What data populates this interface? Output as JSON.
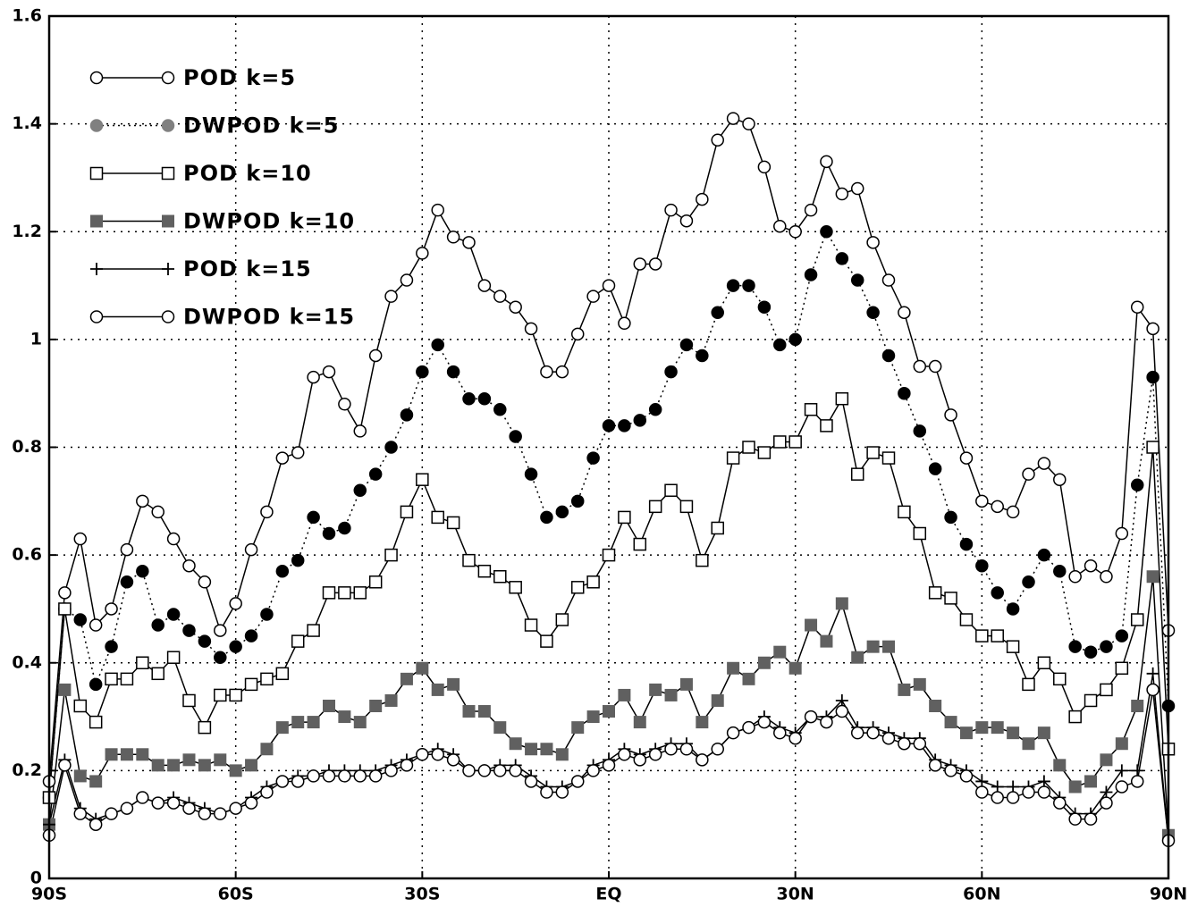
{
  "chart_data": {
    "type": "line",
    "x": [
      -90,
      -87.5,
      -85,
      -82.5,
      -80,
      -77.5,
      -75,
      -72.5,
      -70,
      -67.5,
      -65,
      -62.5,
      -60,
      -57.5,
      -55,
      -52.5,
      -50,
      -47.5,
      -45,
      -42.5,
      -40,
      -37.5,
      -35,
      -32.5,
      -30,
      -27.5,
      -25,
      -22.5,
      -20,
      -17.5,
      -15,
      -12.5,
      -10,
      -7.5,
      -5,
      -2.5,
      0,
      2.5,
      5,
      7.5,
      10,
      12.5,
      15,
      17.5,
      20,
      22.5,
      25,
      27.5,
      30,
      32.5,
      35,
      37.5,
      40,
      42.5,
      45,
      47.5,
      50,
      52.5,
      55,
      57.5,
      60,
      62.5,
      65,
      67.5,
      70,
      72.5,
      75,
      77.5,
      80,
      82.5,
      85,
      87.5,
      90
    ],
    "xlim": [
      -90,
      90
    ],
    "xticks": [
      {
        "value": -90,
        "label": "90S"
      },
      {
        "value": -60,
        "label": "60S"
      },
      {
        "value": -30,
        "label": "30S"
      },
      {
        "value": 0,
        "label": "EQ"
      },
      {
        "value": 30,
        "label": "30N"
      },
      {
        "value": 60,
        "label": "60N"
      },
      {
        "value": 90,
        "label": "90N"
      }
    ],
    "ylim": [
      0,
      1.6
    ],
    "yticks": [
      0,
      0.2,
      0.4,
      0.6,
      0.8,
      1,
      1.2,
      1.4,
      1.6
    ],
    "grid": true,
    "legend": "top-left",
    "series": [
      {
        "name": "POD k=5",
        "color": "#000000",
        "marker": "circle-open",
        "line": "solid",
        "values": [
          0.18,
          0.53,
          0.63,
          0.47,
          0.5,
          0.61,
          0.7,
          0.68,
          0.63,
          0.58,
          0.55,
          0.46,
          0.51,
          0.61,
          0.68,
          0.78,
          0.79,
          0.93,
          0.94,
          0.88,
          0.83,
          0.97,
          1.08,
          1.11,
          1.16,
          1.24,
          1.19,
          1.18,
          1.1,
          1.08,
          1.06,
          1.02,
          0.94,
          0.94,
          1.01,
          1.08,
          1.1,
          1.03,
          1.14,
          1.14,
          1.24,
          1.22,
          1.26,
          1.37,
          1.41,
          1.4,
          1.32,
          1.21,
          1.2,
          1.24,
          1.33,
          1.27,
          1.28,
          1.18,
          1.11,
          1.05,
          0.95,
          0.95,
          0.86,
          0.78,
          0.7,
          0.69,
          0.68,
          0.75,
          0.77,
          0.74,
          0.56,
          0.58,
          0.56,
          0.64,
          1.06,
          1.02,
          0.46
        ]
      },
      {
        "name": "DWPOD k=5",
        "color": "#000000",
        "marker": "circle-filled",
        "line": "dotted",
        "values": [
          0.15,
          0.5,
          0.48,
          0.36,
          0.43,
          0.55,
          0.57,
          0.47,
          0.49,
          0.46,
          0.44,
          0.41,
          0.43,
          0.45,
          0.49,
          0.57,
          0.59,
          0.67,
          0.64,
          0.65,
          0.72,
          0.75,
          0.8,
          0.86,
          0.94,
          0.99,
          0.94,
          0.89,
          0.89,
          0.87,
          0.82,
          0.75,
          0.67,
          0.68,
          0.7,
          0.78,
          0.84,
          0.84,
          0.85,
          0.87,
          0.94,
          0.99,
          0.97,
          1.05,
          1.1,
          1.1,
          1.06,
          0.99,
          1.0,
          1.12,
          1.2,
          1.15,
          1.11,
          1.05,
          0.97,
          0.9,
          0.83,
          0.76,
          0.67,
          0.62,
          0.58,
          0.53,
          0.5,
          0.55,
          0.6,
          0.57,
          0.43,
          0.42,
          0.43,
          0.45,
          0.73,
          0.93,
          0.32
        ]
      },
      {
        "name": "POD k=10",
        "color": "#000000",
        "marker": "square-open",
        "line": "solid",
        "values": [
          0.15,
          0.5,
          0.32,
          0.29,
          0.37,
          0.37,
          0.4,
          0.38,
          0.41,
          0.33,
          0.28,
          0.34,
          0.34,
          0.36,
          0.37,
          0.38,
          0.44,
          0.46,
          0.53,
          0.53,
          0.53,
          0.55,
          0.6,
          0.68,
          0.74,
          0.67,
          0.66,
          0.59,
          0.57,
          0.56,
          0.54,
          0.47,
          0.44,
          0.48,
          0.54,
          0.55,
          0.6,
          0.67,
          0.62,
          0.69,
          0.72,
          0.69,
          0.59,
          0.65,
          0.78,
          0.8,
          0.79,
          0.81,
          0.81,
          0.87,
          0.84,
          0.89,
          0.75,
          0.79,
          0.78,
          0.68,
          0.64,
          0.53,
          0.52,
          0.48,
          0.45,
          0.45,
          0.43,
          0.36,
          0.4,
          0.37,
          0.3,
          0.33,
          0.35,
          0.39,
          0.48,
          0.8,
          0.24
        ]
      },
      {
        "name": "DWPOD k=10",
        "color": "#606060",
        "marker": "square-filled",
        "line": "solid",
        "values": [
          0.1,
          0.35,
          0.19,
          0.18,
          0.23,
          0.23,
          0.23,
          0.21,
          0.21,
          0.22,
          0.21,
          0.22,
          0.2,
          0.21,
          0.24,
          0.28,
          0.29,
          0.29,
          0.32,
          0.3,
          0.29,
          0.32,
          0.33,
          0.37,
          0.39,
          0.35,
          0.36,
          0.31,
          0.31,
          0.28,
          0.25,
          0.24,
          0.24,
          0.23,
          0.28,
          0.3,
          0.31,
          0.34,
          0.29,
          0.35,
          0.34,
          0.36,
          0.29,
          0.33,
          0.39,
          0.37,
          0.4,
          0.42,
          0.39,
          0.47,
          0.44,
          0.51,
          0.41,
          0.43,
          0.43,
          0.35,
          0.36,
          0.32,
          0.29,
          0.27,
          0.28,
          0.28,
          0.27,
          0.25,
          0.27,
          0.21,
          0.17,
          0.18,
          0.22,
          0.25,
          0.32,
          0.56,
          0.08
        ]
      },
      {
        "name": "POD k=15",
        "color": "#000000",
        "marker": "plus",
        "line": "solid",
        "values": [
          0.1,
          0.22,
          0.13,
          0.11,
          0.12,
          0.13,
          0.15,
          0.14,
          0.15,
          0.14,
          0.13,
          0.12,
          0.13,
          0.15,
          0.17,
          0.18,
          0.19,
          0.19,
          0.2,
          0.2,
          0.2,
          0.2,
          0.21,
          0.22,
          0.23,
          0.24,
          0.23,
          0.2,
          0.2,
          0.21,
          0.21,
          0.19,
          0.17,
          0.17,
          0.18,
          0.21,
          0.22,
          0.24,
          0.23,
          0.24,
          0.25,
          0.25,
          0.22,
          0.24,
          0.27,
          0.28,
          0.3,
          0.28,
          0.27,
          0.3,
          0.3,
          0.33,
          0.28,
          0.28,
          0.27,
          0.26,
          0.26,
          0.22,
          0.21,
          0.2,
          0.18,
          0.17,
          0.17,
          0.17,
          0.18,
          0.15,
          0.12,
          0.12,
          0.16,
          0.2,
          0.2,
          0.38,
          0.07
        ]
      },
      {
        "name": "DWPOD k=15",
        "color": "#000000",
        "marker": "circle-open",
        "line": "solid",
        "values": [
          0.08,
          0.21,
          0.12,
          0.1,
          0.12,
          0.13,
          0.15,
          0.14,
          0.14,
          0.13,
          0.12,
          0.12,
          0.13,
          0.14,
          0.16,
          0.18,
          0.18,
          0.19,
          0.19,
          0.19,
          0.19,
          0.19,
          0.2,
          0.21,
          0.23,
          0.23,
          0.22,
          0.2,
          0.2,
          0.2,
          0.2,
          0.18,
          0.16,
          0.16,
          0.18,
          0.2,
          0.21,
          0.23,
          0.22,
          0.23,
          0.24,
          0.24,
          0.22,
          0.24,
          0.27,
          0.28,
          0.29,
          0.27,
          0.26,
          0.3,
          0.29,
          0.31,
          0.27,
          0.27,
          0.26,
          0.25,
          0.25,
          0.21,
          0.2,
          0.19,
          0.16,
          0.15,
          0.15,
          0.16,
          0.16,
          0.14,
          0.11,
          0.11,
          0.14,
          0.17,
          0.18,
          0.35,
          0.07
        ]
      }
    ]
  }
}
